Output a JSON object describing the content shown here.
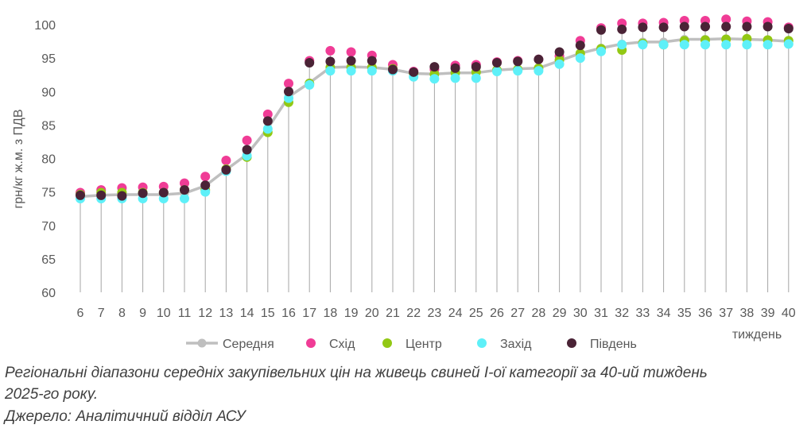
{
  "chart_data": {
    "type": "line",
    "title": "",
    "ylabel": "грн/кг ж.м. з ПДВ",
    "xlabel": "тиждень",
    "ylim": [
      60,
      100
    ],
    "yticks": [
      60,
      65,
      70,
      75,
      80,
      85,
      90,
      95,
      100
    ],
    "categories": [
      "6",
      "7",
      "8",
      "9",
      "10",
      "11",
      "12",
      "13",
      "14",
      "15",
      "16",
      "17",
      "18",
      "19",
      "20",
      "21",
      "22",
      "23",
      "24",
      "25",
      "26",
      "27",
      "28",
      "29",
      "30",
      "31",
      "32",
      "33",
      "34",
      "35",
      "36",
      "37",
      "38",
      "39",
      "40"
    ],
    "range_lines": true,
    "series": [
      {
        "name": "Середня",
        "color": "#bfbfbf",
        "style": "line",
        "values": [
          74.3,
          74.5,
          74.6,
          74.6,
          74.6,
          74.8,
          75.9,
          78.3,
          80.6,
          84.5,
          89.2,
          91.3,
          93.6,
          93.7,
          93.6,
          93.3,
          92.7,
          92.6,
          92.8,
          92.8,
          93.2,
          93.4,
          93.5,
          94.6,
          95.7,
          96.5,
          97.1,
          97.4,
          97.4,
          97.8,
          97.8,
          97.9,
          97.8,
          97.7,
          97.5
        ]
      },
      {
        "name": "Схід",
        "color": "#f03c96",
        "style": "dot",
        "values": [
          74.9,
          75.3,
          75.6,
          75.7,
          75.8,
          76.3,
          77.3,
          79.7,
          82.7,
          86.6,
          91.2,
          94.6,
          96.1,
          95.9,
          95.4,
          94.0,
          93.0,
          93.3,
          93.9,
          94.0,
          94.4,
          94.6,
          94.8,
          95.3,
          97.6,
          99.5,
          100.2,
          100.2,
          100.3,
          100.6,
          100.6,
          100.8,
          100.5,
          100.4,
          99.6
        ]
      },
      {
        "name": "Центр",
        "color": "#92c814",
        "style": "dot",
        "values": [
          74.6,
          74.9,
          74.9,
          74.9,
          74.9,
          75.3,
          75.3,
          78.4,
          80.2,
          83.9,
          88.4,
          91.2,
          93.6,
          93.6,
          93.6,
          93.4,
          92.7,
          92.6,
          92.8,
          92.9,
          93.2,
          93.3,
          93.5,
          94.7,
          95.7,
          96.4,
          96.2,
          97.2,
          97.0,
          97.6,
          97.7,
          97.8,
          97.9,
          97.7,
          97.6
        ]
      },
      {
        "name": "Захід",
        "color": "#5ef0f8",
        "style": "dot",
        "values": [
          74.0,
          74.0,
          74.0,
          74.0,
          74.0,
          74.0,
          75.0,
          78.1,
          80.4,
          84.4,
          89.0,
          91.0,
          93.1,
          93.1,
          93.1,
          93.1,
          92.2,
          91.9,
          92.0,
          92.0,
          93.0,
          93.1,
          93.1,
          94.1,
          95.0,
          96.0,
          97.0,
          97.0,
          97.0,
          97.0,
          97.0,
          97.0,
          97.0,
          97.0,
          97.1
        ]
      },
      {
        "name": "Південь",
        "color": "#4a2336",
        "style": "dot",
        "values": [
          74.5,
          74.5,
          74.4,
          74.8,
          74.9,
          75.3,
          76.0,
          78.3,
          81.3,
          85.6,
          90.0,
          94.3,
          94.5,
          94.6,
          94.6,
          93.3,
          92.9,
          93.7,
          93.5,
          93.7,
          94.3,
          94.5,
          94.8,
          95.9,
          96.9,
          99.2,
          99.3,
          99.6,
          99.6,
          99.7,
          99.7,
          99.7,
          99.7,
          99.7,
          99.4
        ]
      }
    ]
  },
  "caption": {
    "line1": "Регіональні діапазони середніх закупівельних цін на живець свиней І-ої категорії за 40-ий тиждень",
    "line2": "2025-го року.",
    "line3": "Джерело: Аналітичний відділ АСУ"
  }
}
